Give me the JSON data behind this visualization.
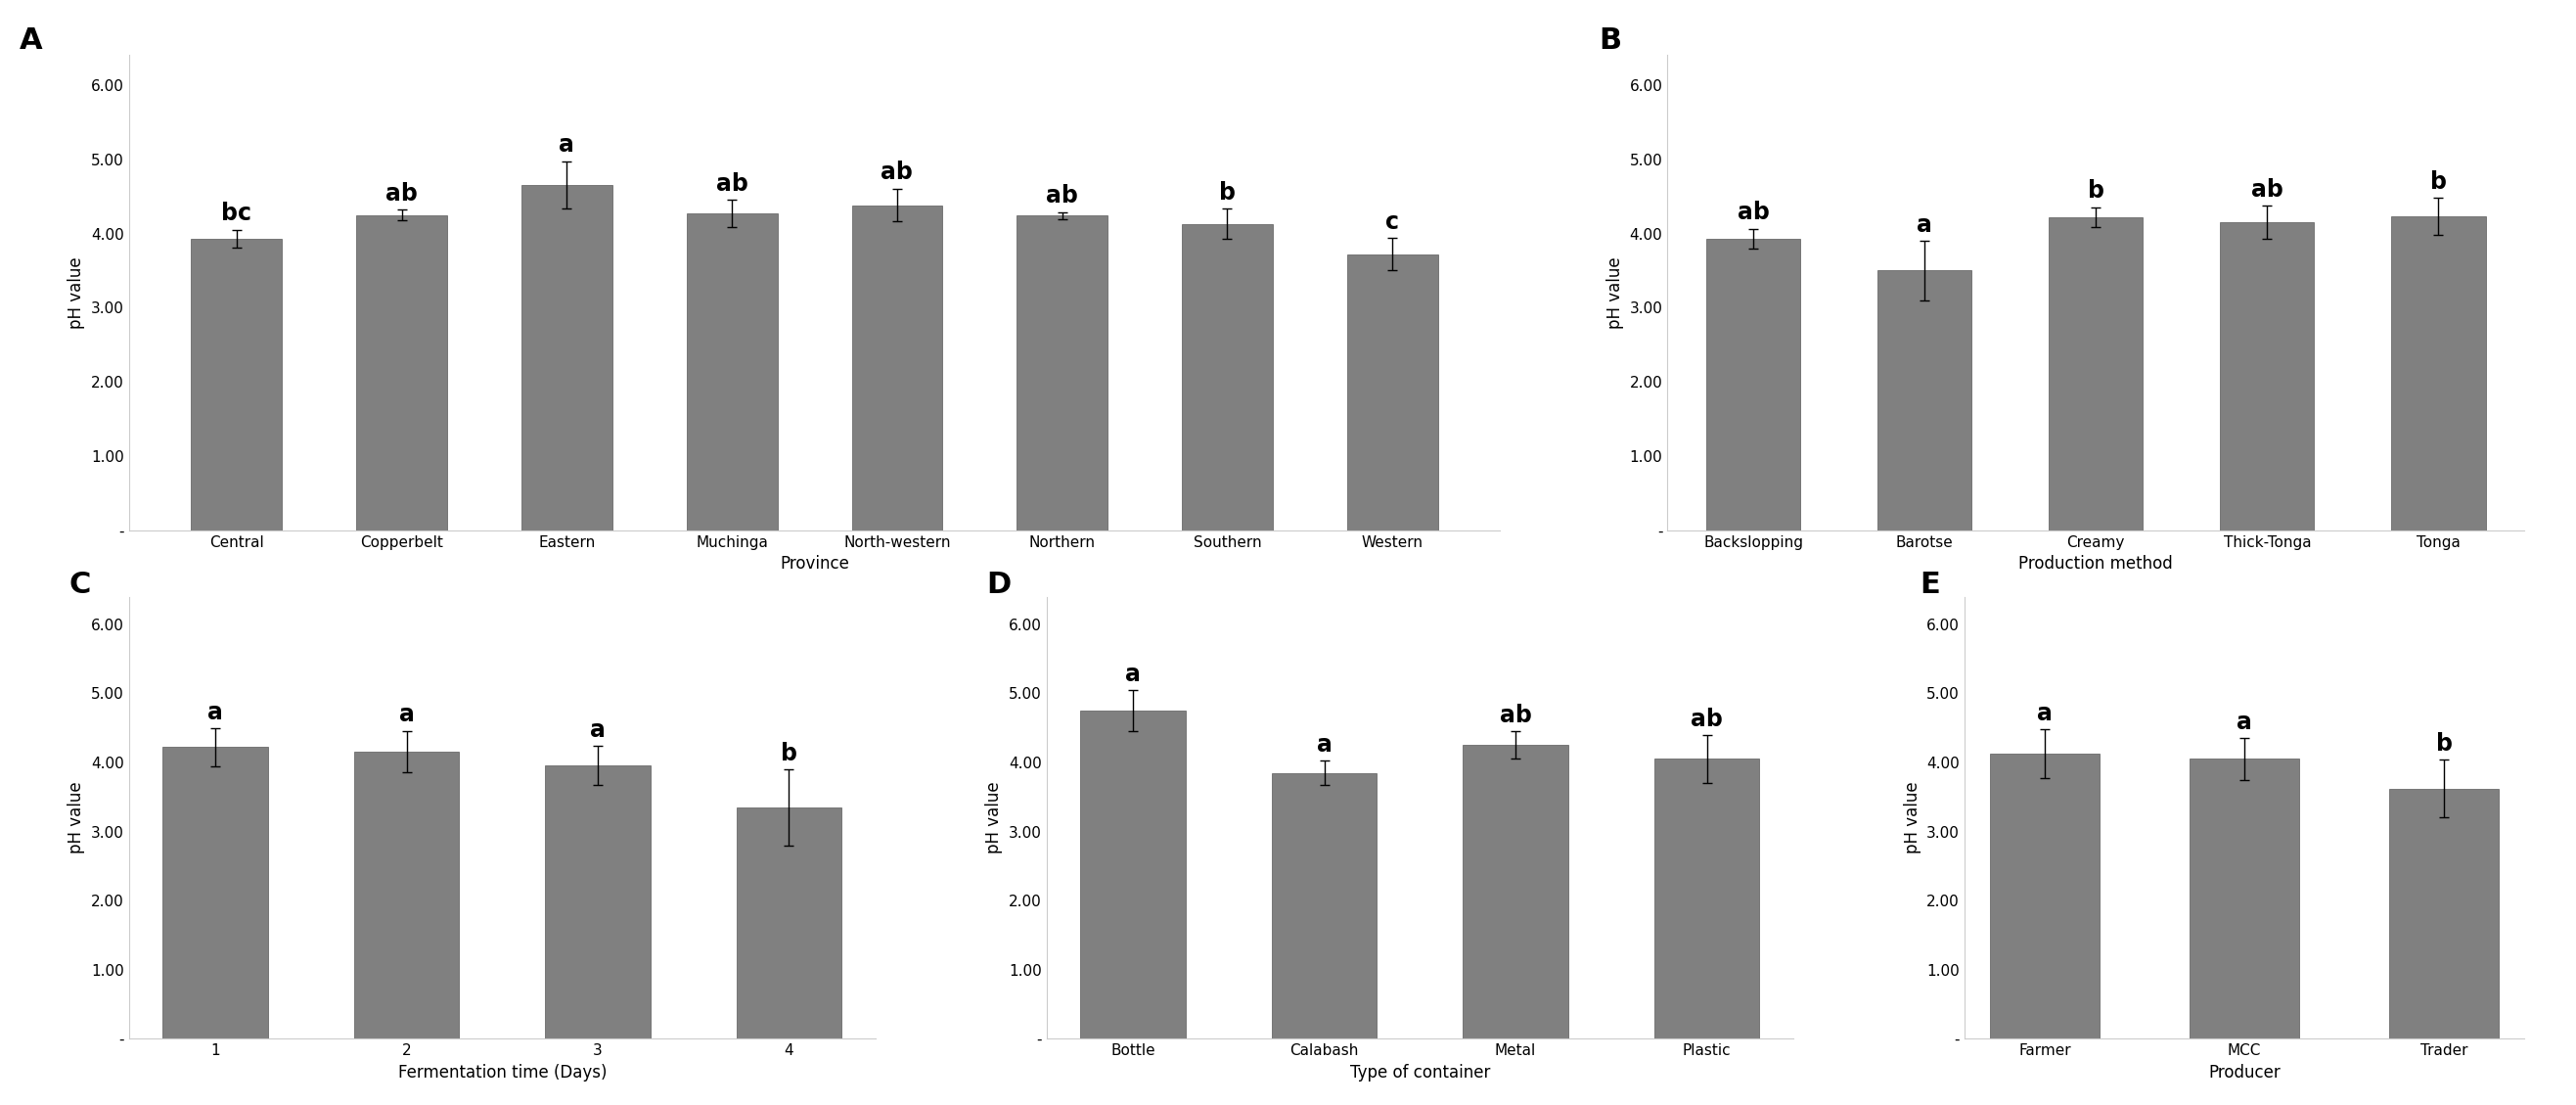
{
  "panel_A": {
    "categories": [
      "Central",
      "Copperbelt",
      "Eastern",
      "Muchinga",
      "North-western",
      "Northern",
      "Southern",
      "Western"
    ],
    "values": [
      3.93,
      4.25,
      4.65,
      4.27,
      4.38,
      4.24,
      4.13,
      3.72
    ],
    "errors": [
      0.12,
      0.07,
      0.32,
      0.18,
      0.22,
      0.05,
      0.2,
      0.22
    ],
    "labels": [
      "bc",
      "ab",
      "a",
      "ab",
      "ab",
      "ab",
      "b",
      "c"
    ],
    "xlabel": "Province",
    "ylabel": "pH value"
  },
  "panel_B": {
    "categories": [
      "Backslopping",
      "Barotse",
      "Creamy",
      "Thick-Tonga",
      "Tonga"
    ],
    "values": [
      3.93,
      3.5,
      4.22,
      4.15,
      4.23
    ],
    "errors": [
      0.13,
      0.4,
      0.13,
      0.22,
      0.25
    ],
    "labels": [
      "ab",
      "a",
      "b",
      "ab",
      "b"
    ],
    "xlabel": "Production method",
    "ylabel": "pH value"
  },
  "panel_C": {
    "categories": [
      "1",
      "2",
      "3",
      "4"
    ],
    "values": [
      4.22,
      4.16,
      3.96,
      3.35
    ],
    "errors": [
      0.27,
      0.3,
      0.28,
      0.55
    ],
    "labels": [
      "a",
      "a",
      "a",
      "b"
    ],
    "xlabel": "Fermentation time (Days)",
    "ylabel": "pH value"
  },
  "panel_D": {
    "categories": [
      "Bottle",
      "Calabash",
      "Metal",
      "Plastic"
    ],
    "values": [
      4.75,
      3.85,
      4.25,
      4.05
    ],
    "errors": [
      0.3,
      0.18,
      0.2,
      0.35
    ],
    "labels": [
      "a",
      "a",
      "ab",
      "ab"
    ],
    "xlabel": "Type of container",
    "ylabel": "pH value"
  },
  "panel_E": {
    "categories": [
      "Farmer",
      "MCC",
      "Trader"
    ],
    "values": [
      4.13,
      4.05,
      3.62
    ],
    "errors": [
      0.35,
      0.3,
      0.42
    ],
    "labels": [
      "a",
      "a",
      "b"
    ],
    "xlabel": "Producer",
    "ylabel": "pH value"
  },
  "bar_color": "#808080",
  "bar_edge_color": "#5a5a5a",
  "yticks": [
    0.0,
    1.0,
    2.0,
    3.0,
    4.0,
    5.0,
    6.0
  ],
  "ytick_labels": [
    "-",
    "1.00",
    "2.00",
    "3.00",
    "4.00",
    "5.00",
    "6.00"
  ],
  "ylim": [
    0,
    6.4
  ],
  "panel_labels": [
    "A",
    "B",
    "C",
    "D",
    "E"
  ],
  "background_color": "#ffffff",
  "tick_fontsize": 11,
  "axis_label_fontsize": 12,
  "sig_label_fontsize": 17,
  "panel_label_fontsize": 22
}
